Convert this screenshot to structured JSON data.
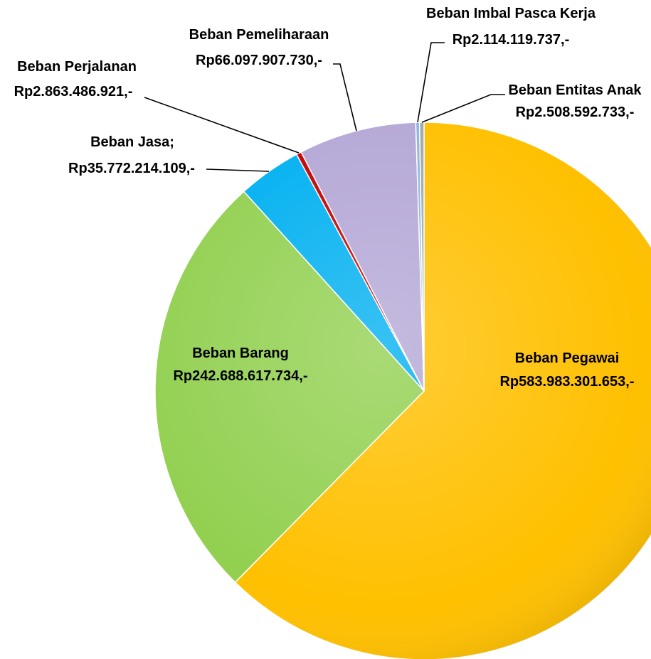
{
  "chart_data": {
    "type": "pie",
    "title": "",
    "slices": [
      {
        "name": "Beban Pegawai",
        "value_label": "Rp583.983.301.653,-",
        "value": 583983301653,
        "color": "#FFC000"
      },
      {
        "name": "Beban Barang",
        "value_label": "Rp242.688.617.734,-",
        "value": 242688617734,
        "color": "#92D050"
      },
      {
        "name": "Beban Jasa;",
        "value_label": "Rp35.772.214.109,-",
        "value": 35772214109,
        "color": "#00B0F0"
      },
      {
        "name": "Beban Perjalanan",
        "value_label": "Rp2.863.486.921,-",
        "value": 2863486921,
        "color": "#C00000"
      },
      {
        "name": "Beban Pemeliharaan",
        "value_label": "Rp66.097.907.730,-",
        "value": 66097907730,
        "color": "#B4A7D6"
      },
      {
        "name": "Beban Imbal Pasca Kerja",
        "value_label": "Rp2.114.119.737,-",
        "value": 2114119737,
        "color": "#8DB4E2"
      },
      {
        "name": "Beban Entitas Anak",
        "value_label": "Rp2.508.592.733,-",
        "value": 2508592733,
        "color": "#A6A6A6"
      }
    ]
  }
}
